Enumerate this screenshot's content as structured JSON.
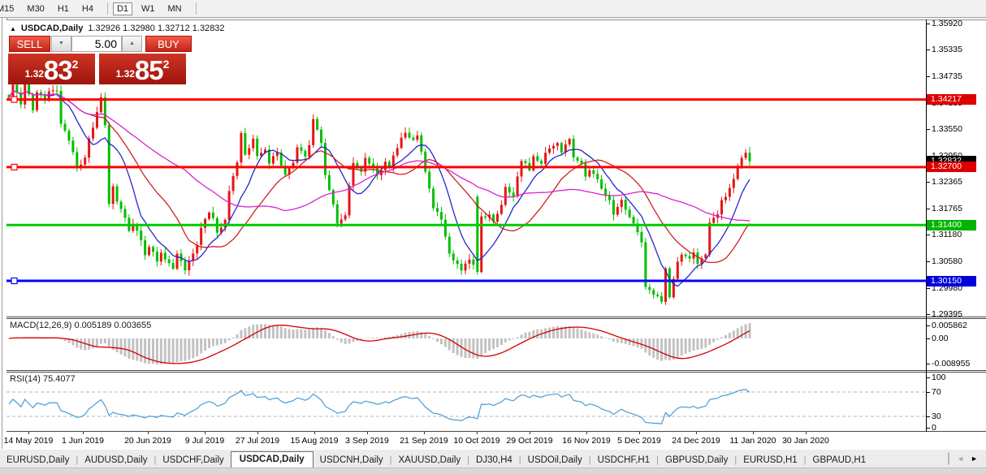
{
  "toolbar": {
    "timeframes": [
      {
        "label": "M15",
        "active": false,
        "clipped": true
      },
      {
        "label": "M30",
        "active": false
      },
      {
        "label": "H1",
        "active": false
      },
      {
        "label": "H4",
        "active": false
      },
      {
        "label": "D1",
        "active": true
      },
      {
        "label": "W1",
        "active": false
      },
      {
        "label": "MN",
        "active": false
      }
    ]
  },
  "trade_panel": {
    "collapse_icon": "▲",
    "title": "USDCAD,Daily",
    "ohlc_text": "1.32926 1.32980 1.32712 1.32832",
    "sell_label": "SELL",
    "buy_label": "BUY",
    "volume": "5.00",
    "spin_down_icon": "▼",
    "spin_up_icon": "▲",
    "sell_price": {
      "small": "1.32",
      "big": "83",
      "sup": "2"
    },
    "buy_price": {
      "small": "1.32",
      "big": "85",
      "sup": "2"
    }
  },
  "chart_data": {
    "type": "candlestick",
    "symbol": "USDCAD",
    "timeframe": "Daily",
    "ohlc_current": {
      "open": 1.32926,
      "high": 1.3298,
      "low": 1.32712,
      "close": 1.32832
    },
    "colors": {
      "bull": "#e81414",
      "bear": "#00bf00",
      "ma_fast": "#2626cd",
      "ma_mid": "#d02020",
      "ma_slow": "#dd22cc",
      "macd_hist": "#c2c2c2",
      "macd_signal": "#d40000",
      "rsi_line": "#4a9bd4",
      "level_dashed": "#b4b4b4"
    },
    "moving_average_periods": [
      9,
      21,
      45
    ],
    "y_axis_ticks": [
      "1.35920",
      "1.35335",
      "1.34735",
      "1.34135",
      "1.33550",
      "1.32950",
      "1.32365",
      "1.31765",
      "1.31180",
      "1.30580",
      "1.29980",
      "1.29395"
    ],
    "price_badges": [
      {
        "value": "1.34217",
        "color": "#dd0000",
        "price": 1.34217
      },
      {
        "value": "1.32832",
        "color": "#000000",
        "price": 1.32832
      },
      {
        "value": "1.32700",
        "color": "#dd0000",
        "price": 1.327
      },
      {
        "value": "1.31400",
        "color": "#00b400",
        "price": 1.314
      },
      {
        "value": "1.30150",
        "color": "#0000dd",
        "price": 1.3015
      }
    ],
    "horizontal_lines": [
      {
        "price": 1.34217,
        "color": "#ff0000",
        "handle": true
      },
      {
        "price": 1.327,
        "color": "#ff0000",
        "handle": true
      },
      {
        "price": 1.314,
        "color": "#00cc00",
        "handle": false
      },
      {
        "price": 1.3015,
        "color": "#0000ff",
        "handle": true
      }
    ],
    "x_axis_labels": [
      {
        "center": 35,
        "label": "14 May 2019"
      },
      {
        "center": 102,
        "label": "1 Jun 2019"
      },
      {
        "center": 182,
        "label": "20 Jun 2019"
      },
      {
        "center": 252,
        "label": "9 Jul 2019"
      },
      {
        "center": 317,
        "label": "27 Jul 2019"
      },
      {
        "center": 387,
        "label": "15 Aug 2019"
      },
      {
        "center": 452,
        "label": "3 Sep 2019"
      },
      {
        "center": 522,
        "label": "21 Sep 2019"
      },
      {
        "center": 587,
        "label": "10 Oct 2019"
      },
      {
        "center": 652,
        "label": "29 Oct 2019"
      },
      {
        "center": 722,
        "label": "16 Nov 2019"
      },
      {
        "center": 787,
        "label": "5 Dec 2019"
      },
      {
        "center": 857,
        "label": "24 Dec 2019"
      },
      {
        "center": 927,
        "label": "11 Jan 2020"
      },
      {
        "center": 992,
        "label": "30 Jan 2020"
      }
    ],
    "candle_count": 186,
    "close_waypoints": [
      [
        0,
        1.343
      ],
      [
        1,
        1.3452
      ],
      [
        3,
        1.3415
      ],
      [
        4,
        1.3462
      ],
      [
        6,
        1.3398
      ],
      [
        7,
        1.344
      ],
      [
        9,
        1.342
      ],
      [
        10,
        1.3438
      ],
      [
        12,
        1.3442
      ],
      [
        13,
        1.3368
      ],
      [
        15,
        1.333
      ],
      [
        16,
        1.33
      ],
      [
        17,
        1.3268
      ],
      [
        19,
        1.3292
      ],
      [
        20,
        1.333
      ],
      [
        22,
        1.3395
      ],
      [
        23,
        1.3428
      ],
      [
        24,
        1.3368
      ],
      [
        25,
        1.319
      ],
      [
        26,
        1.3225
      ],
      [
        27,
        1.3192
      ],
      [
        29,
        1.3155
      ],
      [
        30,
        1.3125
      ],
      [
        31,
        1.3145
      ],
      [
        33,
        1.3105
      ],
      [
        34,
        1.3072
      ],
      [
        35,
        1.3092
      ],
      [
        37,
        1.3062
      ],
      [
        38,
        1.3082
      ],
      [
        40,
        1.3052
      ],
      [
        41,
        1.3046
      ],
      [
        42,
        1.3072
      ],
      [
        44,
        1.3038
      ],
      [
        45,
        1.3062
      ],
      [
        47,
        1.3092
      ],
      [
        48,
        1.3132
      ],
      [
        50,
        1.3172
      ],
      [
        51,
        1.3152
      ],
      [
        52,
        1.3122
      ],
      [
        54,
        1.3152
      ],
      [
        55,
        1.3212
      ],
      [
        57,
        1.3282
      ],
      [
        58,
        1.3342
      ],
      [
        59,
        1.3302
      ],
      [
        61,
        1.3332
      ],
      [
        62,
        1.3292
      ],
      [
        64,
        1.3312
      ],
      [
        65,
        1.3282
      ],
      [
        67,
        1.3302
      ],
      [
        68,
        1.3272
      ],
      [
        69,
        1.3252
      ],
      [
        71,
        1.3282
      ],
      [
        72,
        1.3312
      ],
      [
        74,
        1.3292
      ],
      [
        75,
        1.3322
      ],
      [
        76,
        1.3382
      ],
      [
        78,
        1.3322
      ],
      [
        79,
        1.3252
      ],
      [
        81,
        1.3182
      ],
      [
        82,
        1.3142
      ],
      [
        84,
        1.3162
      ],
      [
        85,
        1.3232
      ],
      [
        86,
        1.3282
      ],
      [
        88,
        1.3262
      ],
      [
        89,
        1.3292
      ],
      [
        91,
        1.3272
      ],
      [
        92,
        1.3252
      ],
      [
        94,
        1.3282
      ],
      [
        95,
        1.3272
      ],
      [
        96,
        1.3292
      ],
      [
        98,
        1.3332
      ],
      [
        99,
        1.3348
      ],
      [
        101,
        1.3332
      ],
      [
        102,
        1.3342
      ],
      [
        103,
        1.3302
      ],
      [
        105,
        1.3222
      ],
      [
        106,
        1.3182
      ],
      [
        108,
        1.3152
      ],
      [
        109,
        1.3112
      ],
      [
        110,
        1.3072
      ],
      [
        112,
        1.3052
      ],
      [
        113,
        1.3042
      ],
      [
        115,
        1.3062
      ],
      [
        116,
        1.3052
      ],
      [
        117,
        1.3034,
        1.3204
      ],
      [
        118,
        1.3155
      ],
      [
        120,
        1.3165
      ],
      [
        121,
        1.3145
      ],
      [
        123,
        1.3185
      ],
      [
        124,
        1.3225
      ],
      [
        126,
        1.3205
      ],
      [
        127,
        1.3245
      ],
      [
        128,
        1.3285
      ],
      [
        130,
        1.3265
      ],
      [
        131,
        1.3295
      ],
      [
        133,
        1.3275
      ],
      [
        134,
        1.3305
      ],
      [
        135,
        1.3315
      ],
      [
        137,
        1.3325
      ],
      [
        138,
        1.3305
      ],
      [
        140,
        1.3335
      ],
      [
        141,
        1.3295
      ],
      [
        143,
        1.3275
      ],
      [
        144,
        1.3245
      ],
      [
        145,
        1.3265
      ],
      [
        147,
        1.3245
      ],
      [
        148,
        1.3225
      ],
      [
        150,
        1.3195
      ],
      [
        151,
        1.3165
      ],
      [
        153,
        1.3195
      ],
      [
        154,
        1.3175
      ],
      [
        155,
        1.3155
      ],
      [
        157,
        1.3125
      ],
      [
        158,
        1.3105
      ],
      [
        159,
        1.3005
      ],
      [
        160,
        1.2995
      ],
      [
        161,
        1.2985
      ],
      [
        163,
        1.2968
      ],
      [
        164,
        1.304
      ],
      [
        165,
        1.298
      ],
      [
        167,
        1.306
      ],
      [
        168,
        1.3072
      ],
      [
        170,
        1.3062
      ],
      [
        171,
        1.3082
      ],
      [
        172,
        1.3052
      ],
      [
        174,
        1.3072
      ],
      [
        175,
        1.3142
      ],
      [
        177,
        1.3162
      ],
      [
        178,
        1.3192
      ],
      [
        180,
        1.3222
      ],
      [
        181,
        1.3242
      ],
      [
        182,
        1.3272
      ],
      [
        184,
        1.3302
      ],
      [
        185,
        1.32832
      ]
    ],
    "indicators": {
      "macd": {
        "label": "MACD(12,26,9) 0.005189 0.003655",
        "fast": 12,
        "slow": 26,
        "signal": 9,
        "value_main": 0.005189,
        "value_signal": 0.003655,
        "axis_labels": [
          "0.005862",
          "0.00",
          "-0.008955"
        ]
      },
      "rsi": {
        "label": "RSI(14) 75.4077",
        "period": 14,
        "value": 75.4077,
        "levels": [
          70,
          30
        ],
        "axis_labels": [
          "100",
          "70",
          "30",
          "0"
        ]
      }
    }
  },
  "tabs": {
    "items": [
      "EURUSD,Daily",
      "AUDUSD,Daily",
      "USDCHF,Daily",
      "USDCAD,Daily",
      "USDCNH,Daily",
      "XAUUSD,Daily",
      "DJ30,H4",
      "USDOil,Daily",
      "USDCHF,H1",
      "GBPUSD,Daily",
      "EURUSD,H1",
      "GBPAUD,H1"
    ],
    "active": "USDCAD,Daily",
    "scroll_left_icon": "◄",
    "scroll_right_icon": "►"
  }
}
